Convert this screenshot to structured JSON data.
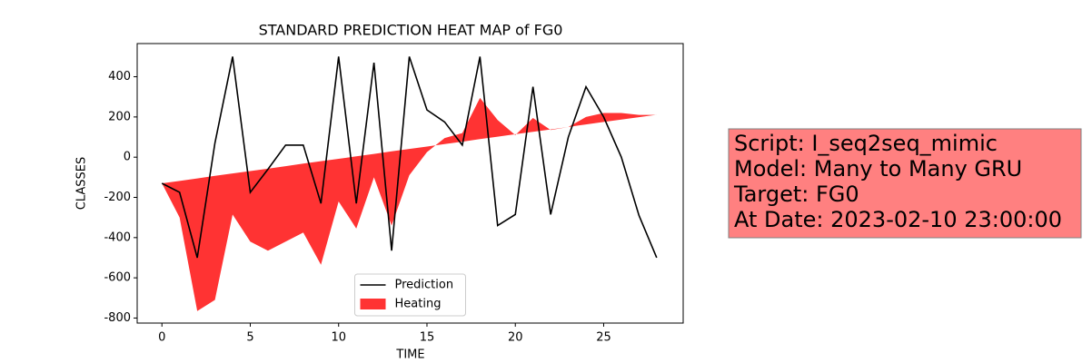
{
  "chart_data": {
    "type": "line",
    "title": "STANDARD PREDICTION HEAT MAP of FG0",
    "x_label": "TIME",
    "y_label": "CLASSES",
    "x": [
      0,
      1,
      2,
      3,
      4,
      5,
      6,
      7,
      8,
      9,
      10,
      11,
      12,
      13,
      14,
      15,
      16,
      17,
      18,
      19,
      20,
      21,
      22,
      23,
      24,
      25,
      26,
      27,
      28
    ],
    "series": [
      {
        "name": "Prediction",
        "color": "#000000",
        "kind": "line",
        "values": [
          -130,
          -175,
          -500,
          70,
          500,
          -175,
          -60,
          60,
          60,
          -230,
          500,
          -230,
          470,
          -465,
          500,
          235,
          175,
          60,
          500,
          -340,
          -285,
          350,
          -285,
          100,
          350,
          200,
          0,
          -290,
          -500
        ]
      },
      {
        "name": "Heating",
        "color": "#ff3333",
        "kind": "fill_between",
        "values": [
          -130,
          -300,
          -765,
          -710,
          -285,
          -420,
          -465,
          -420,
          -375,
          -535,
          -220,
          -355,
          -100,
          -340,
          -90,
          25,
          95,
          120,
          295,
          185,
          110,
          195,
          135,
          150,
          200,
          220,
          220,
          210,
          210
        ],
        "base": [
          -130,
          -118,
          -106,
          -93,
          -81,
          -69,
          -57,
          -45,
          -32,
          -20,
          -8,
          4,
          16,
          29,
          41,
          53,
          65,
          77,
          90,
          102,
          114,
          126,
          138,
          150,
          163,
          175,
          187,
          199,
          211
        ]
      }
    ],
    "xlim": [
      -1.4,
      29.5
    ],
    "ylim": [
      -825,
      565
    ],
    "xticks": [
      0,
      5,
      10,
      15,
      20,
      25
    ],
    "yticks": [
      -800,
      -600,
      -400,
      -200,
      0,
      200,
      400
    ],
    "legend": "lower center",
    "annotation_lines": [
      "Script: I_seq2seq_mimic",
      "Model: Many to Many GRU",
      "Target: FG0",
      "At Date: 2023-02-10 23:00:00"
    ]
  }
}
